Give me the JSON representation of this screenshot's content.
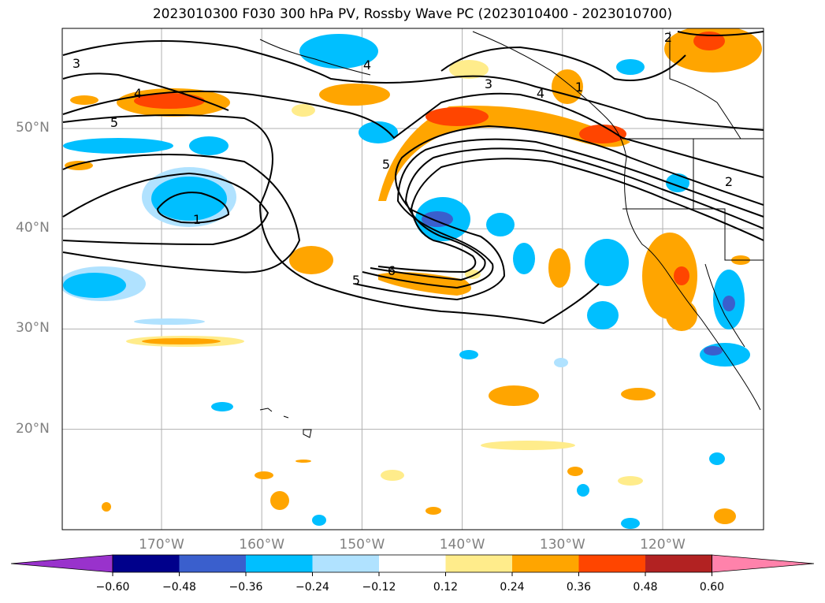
{
  "title": "2023010300 F030 300 hPa PV, Rossby Wave PC (2023010400 - 2023010700)",
  "map": {
    "latitudes": [
      {
        "label": "50°N",
        "lat": 50
      },
      {
        "label": "40°N",
        "lat": 40
      },
      {
        "label": "30°N",
        "lat": 30
      },
      {
        "label": "20°N",
        "lat": 20
      }
    ],
    "longitudes": [
      {
        "label": "170°W",
        "lon": -170
      },
      {
        "label": "160°W",
        "lon": -160
      },
      {
        "label": "150°W",
        "lon": -150
      },
      {
        "label": "140°W",
        "lon": -140
      },
      {
        "label": "130°W",
        "lon": -130
      },
      {
        "label": "120°W",
        "lon": -120
      }
    ],
    "pv_contour_labels": [
      "1",
      "2",
      "3",
      "3",
      "4",
      "4",
      "5",
      "5",
      "5",
      "6",
      "1",
      "2",
      "4"
    ]
  },
  "colorbar": {
    "colors": [
      "#9932cc",
      "#00008b",
      "#3a5fcd",
      "#00bfff",
      "#b0e2ff",
      "#ffffff",
      "#ffec8b",
      "#ffa500",
      "#ff4500",
      "#b22222",
      "#ff82ab"
    ],
    "ticks": [
      "−0.60",
      "−0.48",
      "−0.36",
      "−0.24",
      "−0.12",
      "0.12",
      "0.24",
      "0.36",
      "0.48",
      "0.60"
    ]
  }
}
